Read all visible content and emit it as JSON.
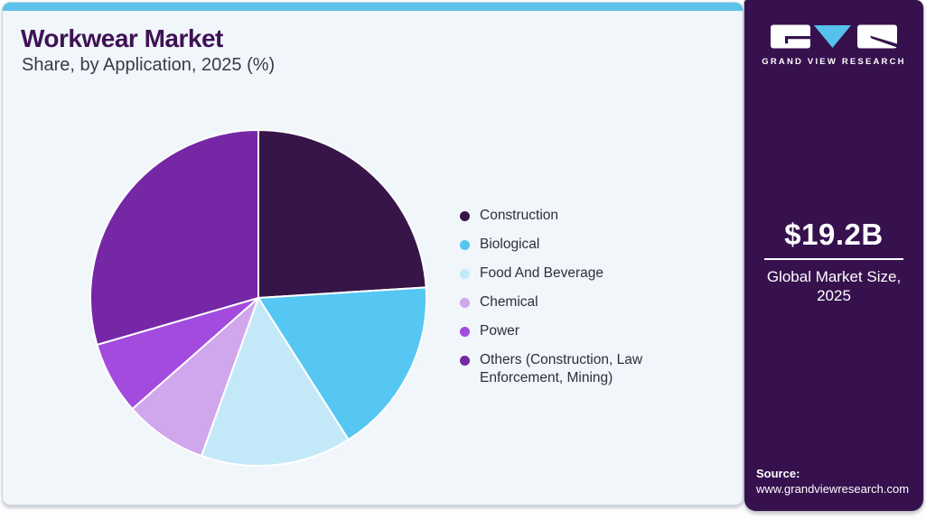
{
  "header": {
    "title": "Workwear Market",
    "subtitle": "Share, by Application, 2025 (%)"
  },
  "chart_data": {
    "type": "pie",
    "title": "Workwear Market Share, by Application, 2025 (%)",
    "unit": "percent",
    "labels": [
      "Construction",
      "Biological",
      "Food And Beverage",
      "Chemical",
      "Power",
      "Others (Construction, Law Enforcement, Mining)"
    ],
    "values": [
      24,
      17,
      14.5,
      8,
      7,
      29.5
    ],
    "colors": [
      "#371549",
      "#56C7F2",
      "#C3E9F9",
      "#D0A6EC",
      "#A24BDE",
      "#7527A5"
    ],
    "start_angle_deg": 0,
    "direction": "clockwise",
    "legend_position": "right",
    "data_labels": false
  },
  "sidebar": {
    "logo_text": "GRAND VIEW RESEARCH",
    "market_size": {
      "value": "$19.2B",
      "label": "Global Market Size, 2025"
    },
    "source": {
      "label": "Source:",
      "url": "www.grandviewresearch.com"
    }
  },
  "colors": {
    "accent_bar": "#5BC3EC",
    "card_bg": "#F0F6FA",
    "sidebar_bg": "#36114E",
    "title_text": "#3F1254",
    "subtitle_text": "#3A3A4A",
    "legend_text": "#2E2E3E",
    "logo_triangle": "#56C1EC"
  }
}
